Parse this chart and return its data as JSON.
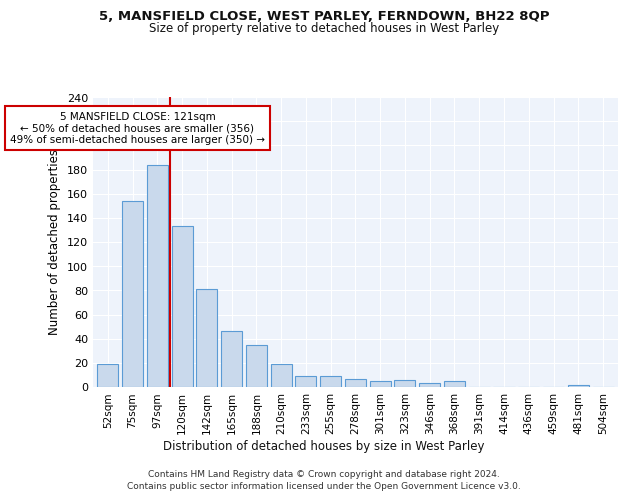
{
  "title1": "5, MANSFIELD CLOSE, WEST PARLEY, FERNDOWN, BH22 8QP",
  "title2": "Size of property relative to detached houses in West Parley",
  "xlabel": "Distribution of detached houses by size in West Parley",
  "ylabel": "Number of detached properties",
  "bar_labels": [
    "52sqm",
    "75sqm",
    "97sqm",
    "120sqm",
    "142sqm",
    "165sqm",
    "188sqm",
    "210sqm",
    "233sqm",
    "255sqm",
    "278sqm",
    "301sqm",
    "323sqm",
    "346sqm",
    "368sqm",
    "391sqm",
    "414sqm",
    "436sqm",
    "459sqm",
    "481sqm",
    "504sqm"
  ],
  "bar_values": [
    19,
    154,
    184,
    133,
    81,
    46,
    35,
    19,
    9,
    9,
    7,
    5,
    6,
    3,
    5,
    0,
    0,
    0,
    0,
    2,
    0
  ],
  "bar_color": "#c9d9ec",
  "bar_edgecolor": "#5b9bd5",
  "background_color": "#eef3fb",
  "grid_color": "#ffffff",
  "annotation_text": "5 MANSFIELD CLOSE: 121sqm\n← 50% of detached houses are smaller (356)\n49% of semi-detached houses are larger (350) →",
  "annotation_box_color": "#ffffff",
  "annotation_box_edgecolor": "#cc0000",
  "ylim": [
    0,
    240
  ],
  "yticks": [
    0,
    20,
    40,
    60,
    80,
    100,
    120,
    140,
    160,
    180,
    200,
    220,
    240
  ],
  "footer_line1": "Contains HM Land Registry data © Crown copyright and database right 2024.",
  "footer_line2": "Contains public sector information licensed under the Open Government Licence v3.0."
}
